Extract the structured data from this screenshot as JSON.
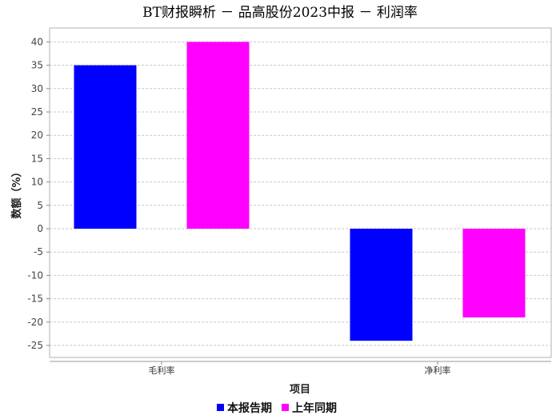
{
  "chart_data": {
    "type": "bar",
    "title": "BT财报瞬析 － 品高股份2023中报 － 利润率",
    "xlabel": "项目",
    "ylabel": "数额（%）",
    "categories": [
      "毛利率",
      "净利率"
    ],
    "series": [
      {
        "name": "本报告期",
        "color": "#0000ff",
        "values": [
          35,
          -24
        ]
      },
      {
        "name": "上年同期",
        "color": "#ff00ff",
        "values": [
          40,
          -19
        ]
      }
    ],
    "ylim": [
      -27,
      43
    ],
    "yticks": [
      "40",
      "35",
      "30",
      "25",
      "20",
      "15",
      "10",
      "5",
      "0",
      "-5",
      "-10",
      "-15",
      "-20",
      "-25"
    ],
    "grid": true,
    "legend_position": "bottom"
  }
}
